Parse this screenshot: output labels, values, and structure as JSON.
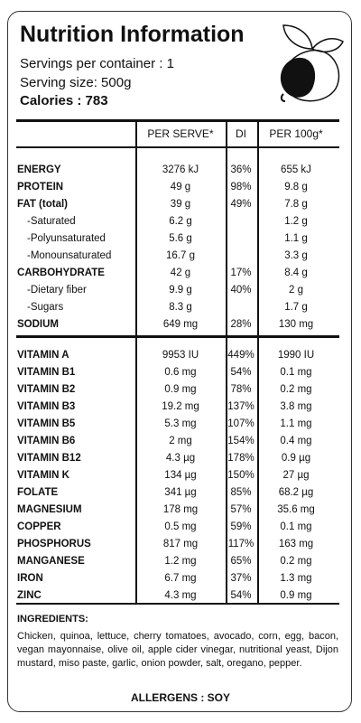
{
  "header": {
    "title": "Nutrition Information",
    "servings_per_container": "Servings per container : 1",
    "serving_size": "Serving size: 500g",
    "calories": "Calories : 783"
  },
  "table": {
    "columns": [
      "PER SERVE*",
      "DI",
      "PER  100g*"
    ],
    "sections": [
      {
        "rows": [
          [
            "ENERGY",
            "3276 kJ",
            "36%",
            "655 kJ"
          ],
          [
            "PROTEIN",
            "49 g",
            "98%",
            "9.8 g"
          ],
          [
            "FAT (total)",
            "39 g",
            "49%",
            "7.8 g"
          ],
          [
            "-Saturated",
            "6.2 g",
            null,
            "1.2 g"
          ],
          [
            "-Polyunsaturated",
            "5.6 g",
            null,
            "1.1 g"
          ],
          [
            "-Monounsaturated",
            "16.7 g",
            null,
            "3.3 g"
          ],
          [
            "CARBOHYDRATE",
            "42 g",
            "17%",
            "8.4 g"
          ],
          [
            "-Dietary fiber",
            "9.9 g",
            "40%",
            "2 g"
          ],
          [
            "-Sugars",
            "8.3 g",
            null,
            "1.7 g"
          ],
          [
            "SODIUM",
            "649 mg",
            "28%",
            "130 mg"
          ]
        ]
      },
      {
        "rows": [
          [
            "VITAMIN A",
            "9953 IU",
            "449%",
            "1990 IU"
          ],
          [
            "VITAMIN B1",
            "0.6 mg",
            "54%",
            "0.1 mg"
          ],
          [
            "VITAMIN B2",
            "0.9 mg",
            "78%",
            "0.2 mg"
          ],
          [
            "VITAMIN B3",
            "19.2 mg",
            "137%",
            "3.8 mg"
          ],
          [
            "VITAMIN B5",
            "5.3 mg",
            "107%",
            "1.1 mg"
          ],
          [
            "VITAMIN B6",
            "2 mg",
            "154%",
            "0.4 mg"
          ],
          [
            "VITAMIN B12",
            "4.3 µg",
            "178%",
            "0.9 µg"
          ],
          [
            "VITAMIN K",
            "134 µg",
            "150%",
            "27 µg"
          ],
          [
            "FOLATE",
            "341 µg",
            "85%",
            "68.2 µg"
          ],
          [
            "MAGNESIUM",
            "178 mg",
            "57%",
            "35.6 mg"
          ],
          [
            "COPPER",
            "0.5 mg",
            "59%",
            "0.1 mg"
          ],
          [
            "PHOSPHORUS",
            "817 mg",
            "117%",
            "163 mg"
          ],
          [
            "MANGANESE",
            "1.2 mg",
            "65%",
            "0.2 mg"
          ],
          [
            "IRON",
            "6.7 mg",
            "37%",
            "1.3 mg"
          ],
          [
            "ZINC",
            "4.3 mg",
            "54%",
            "0.9 mg"
          ]
        ]
      }
    ]
  },
  "ingredients": {
    "heading": "INGREDIENTS:",
    "text": "Chicken, quinoa, lettuce, cherry tomatoes, avocado, corn, egg, bacon, vegan mayonnaise, olive oil, apple cider vinegar, nutritional yeast, Dijon mustard, miso paste, garlic, onion powder, salt, oregano, pepper."
  },
  "allergens": "ALLERGENS : SOY"
}
